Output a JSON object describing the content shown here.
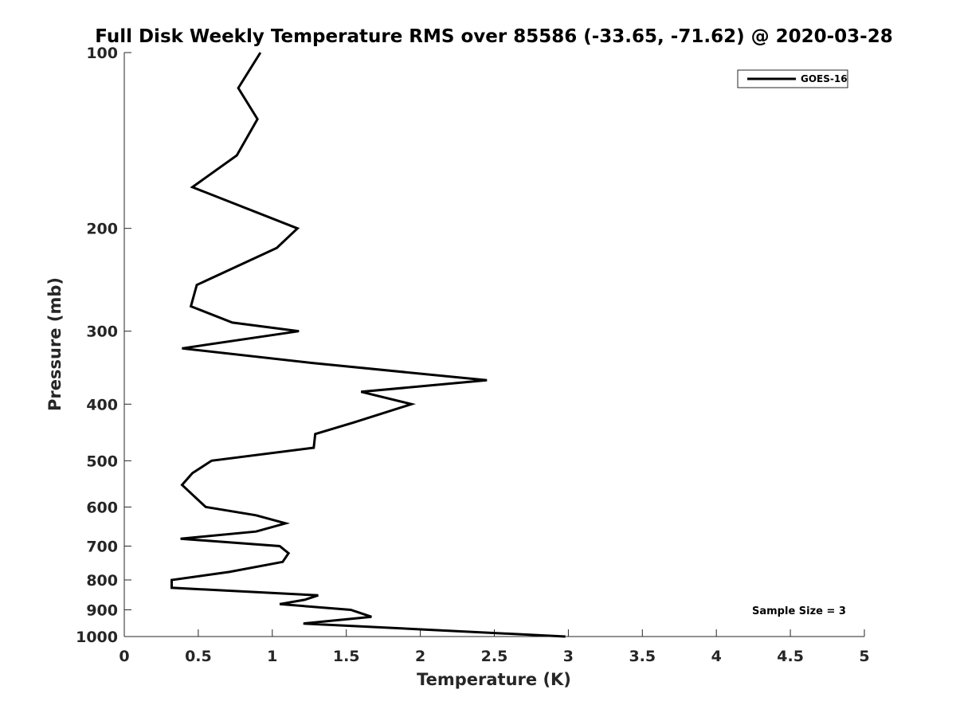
{
  "chart_data": {
    "type": "line",
    "title": "Full Disk Weekly Temperature RMS over 85586 (-33.65, -71.62) @ 2020-03-28",
    "xlabel": "Temperature (K)",
    "ylabel": "Pressure (mb)",
    "xlim": [
      0,
      5
    ],
    "ylim": [
      100,
      1000
    ],
    "y_scale": "log",
    "y_reversed": true,
    "x_ticks": [
      0,
      0.5,
      1,
      1.5,
      2,
      2.5,
      3,
      3.5,
      4,
      4.5,
      5
    ],
    "x_tick_labels": [
      "0",
      "0.5",
      "1",
      "1.5",
      "2",
      "2.5",
      "3",
      "3.5",
      "4",
      "4.5",
      "5"
    ],
    "y_ticks": [
      100,
      200,
      300,
      400,
      500,
      600,
      700,
      800,
      900,
      1000
    ],
    "y_tick_labels": [
      "100",
      "200",
      "300",
      "400",
      "500",
      "600",
      "700",
      "800",
      "900",
      "1000"
    ],
    "grid": false,
    "legend_position": "top-right",
    "annotation": "Sample Size = 3",
    "series": [
      {
        "name": "GOES-16",
        "color": "#000000",
        "points": [
          [
            0.92,
            100
          ],
          [
            0.77,
            115
          ],
          [
            0.9,
            130
          ],
          [
            0.76,
            150
          ],
          [
            0.46,
            170
          ],
          [
            1.17,
            200
          ],
          [
            1.03,
            216
          ],
          [
            0.49,
            250
          ],
          [
            0.45,
            272
          ],
          [
            0.73,
            290
          ],
          [
            1.18,
            300
          ],
          [
            0.39,
            321
          ],
          [
            1.27,
            340
          ],
          [
            2.45,
            364
          ],
          [
            1.6,
            381
          ],
          [
            1.94,
            400
          ],
          [
            1.55,
            430
          ],
          [
            1.29,
            450
          ],
          [
            1.28,
            475
          ],
          [
            0.59,
            500
          ],
          [
            0.46,
            525
          ],
          [
            0.39,
            550
          ],
          [
            0.55,
            600
          ],
          [
            0.89,
            620
          ],
          [
            1.09,
            640
          ],
          [
            0.89,
            661
          ],
          [
            0.38,
            680
          ],
          [
            1.05,
            700
          ],
          [
            1.11,
            720
          ],
          [
            1.07,
            745
          ],
          [
            0.71,
            775
          ],
          [
            0.32,
            800
          ],
          [
            0.32,
            825
          ],
          [
            1.31,
            850
          ],
          [
            1.22,
            865
          ],
          [
            1.05,
            880
          ],
          [
            1.53,
            900
          ],
          [
            1.67,
            925
          ],
          [
            1.21,
            950
          ],
          [
            2.98,
            1000
          ]
        ]
      }
    ]
  }
}
